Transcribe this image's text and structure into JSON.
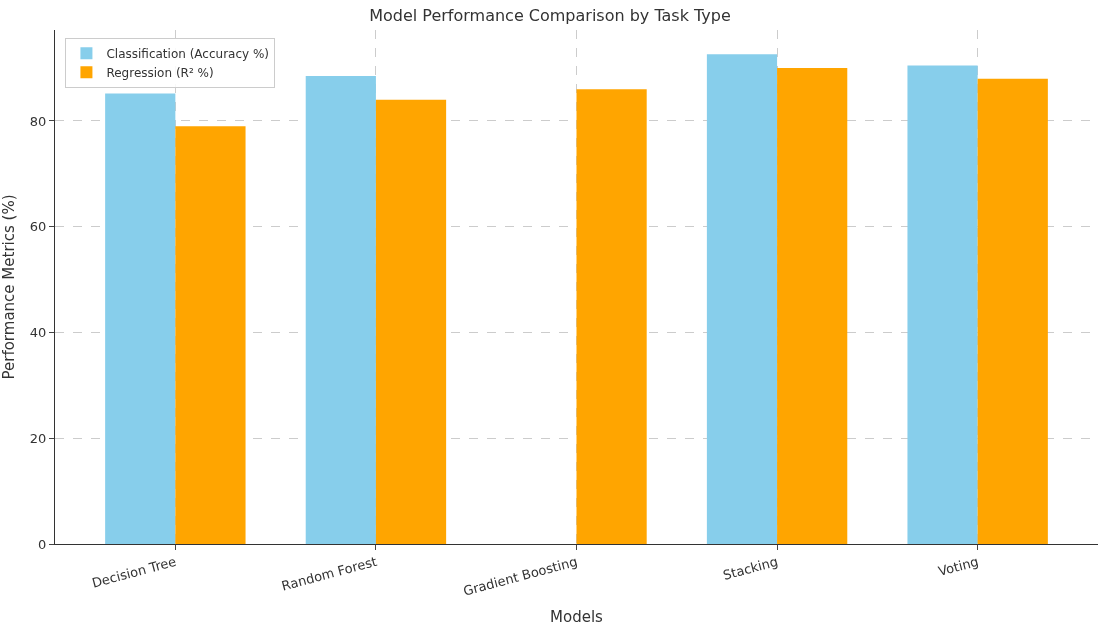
{
  "chart_data": {
    "type": "bar",
    "title": "Model Performance Comparison by Task Type",
    "xlabel": "Models",
    "ylabel": "Performance Metrics (%)",
    "categories": [
      "Decision Tree",
      "Random Forest",
      "Gradient Boosting",
      "Stacking",
      "Voting"
    ],
    "series": [
      {
        "name": "Classification (Accuracy %)",
        "color": "#87ceeb",
        "values": [
          85.2,
          88.5,
          null,
          92.6,
          90.5
        ]
      },
      {
        "name": "Regression (R² %)",
        "color": "#ffa500",
        "values": [
          79,
          84,
          86,
          90,
          88
        ]
      }
    ],
    "ylim": [
      0,
      97.2
    ],
    "yticks": [
      0,
      20,
      40,
      60,
      80
    ],
    "grid": true,
    "legend": "top left"
  }
}
